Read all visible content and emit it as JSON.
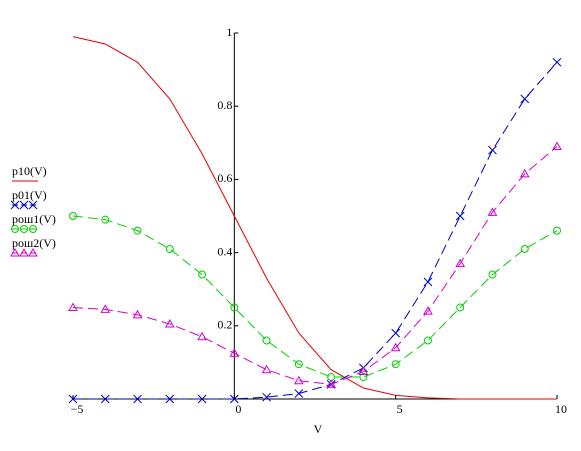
{
  "chart_data": {
    "type": "line",
    "x_label": "V",
    "x": [
      -5,
      -4,
      -3,
      -2,
      -1,
      0,
      1,
      2,
      3,
      4,
      5,
      6,
      7,
      8,
      9,
      10
    ],
    "xlim": [
      -5,
      10
    ],
    "xticks": [
      {
        "value": -5,
        "label": "−5"
      },
      0,
      5,
      10
    ],
    "ylim": [
      0,
      1
    ],
    "yticks": [
      0.2,
      0.4,
      0.6,
      0.8,
      1
    ],
    "series": [
      {
        "name": "p10(V)",
        "color": "#e00000",
        "dash": "solid",
        "marker": "none",
        "values": [
          0.99,
          0.97,
          0.92,
          0.82,
          0.67,
          0.5,
          0.33,
          0.18,
          0.08,
          0.03,
          0.01,
          0.003,
          0,
          0,
          0,
          0
        ]
      },
      {
        "name": "p01(V)",
        "color": "#0000c0",
        "dash": "dashed",
        "marker": "x",
        "values": [
          0,
          0,
          0,
          0,
          0,
          0,
          0.005,
          0.015,
          0.04,
          0.085,
          0.18,
          0.32,
          0.5,
          0.68,
          0.82,
          0.92
        ]
      },
      {
        "name": "рош1(V)",
        "color": "#00d000",
        "dash": "dashed",
        "marker": "circle",
        "values": [
          0.5,
          0.49,
          0.46,
          0.41,
          0.34,
          0.25,
          0.16,
          0.095,
          0.06,
          0.06,
          0.095,
          0.16,
          0.25,
          0.34,
          0.41,
          0.46
        ]
      },
      {
        "name": "рош2(V)",
        "color": "#d000d0",
        "dash": "dashed",
        "marker": "triangle",
        "values": [
          0.25,
          0.245,
          0.23,
          0.205,
          0.17,
          0.125,
          0.08,
          0.05,
          0.04,
          0.075,
          0.14,
          0.24,
          0.37,
          0.51,
          0.615,
          0.69
        ]
      }
    ]
  }
}
